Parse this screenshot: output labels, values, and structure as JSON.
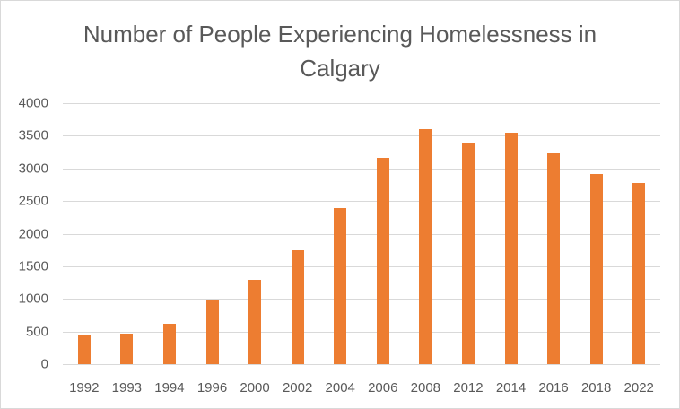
{
  "chart_data": {
    "type": "bar",
    "title": "Number of People Experiencing Homelessness in Calgary",
    "title_lines": [
      "Number of People Experiencing Homelessness  in",
      "Calgary"
    ],
    "xlabel": "",
    "ylabel": "",
    "categories": [
      "1992",
      "1993",
      "1994",
      "1996",
      "2000",
      "2002",
      "2004",
      "2006",
      "2008",
      "2012",
      "2014",
      "2016",
      "2018",
      "2022"
    ],
    "values": [
      450,
      470,
      615,
      990,
      1295,
      1745,
      2390,
      3160,
      3600,
      3390,
      3550,
      3225,
      2920,
      2775
    ],
    "ylim": [
      0,
      4000
    ],
    "yticks": [
      0,
      500,
      1000,
      1500,
      2000,
      2500,
      3000,
      3500,
      4000
    ],
    "grid": true,
    "legend": "none",
    "colors": {
      "bar": "#ed7d31",
      "grid": "#d9d9d9",
      "text": "#595959"
    }
  }
}
